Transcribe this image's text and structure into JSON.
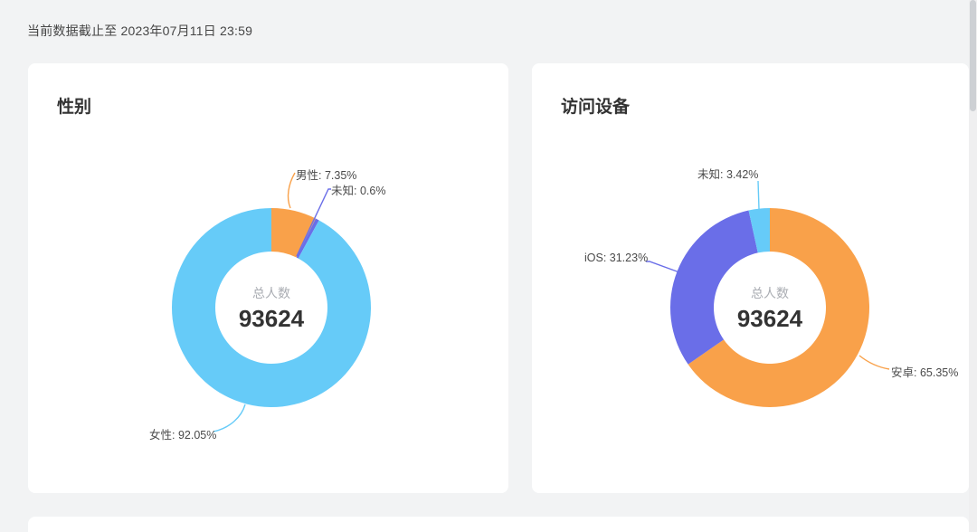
{
  "page": {
    "update_notice": "当前数据截止至 2023年07月11日 23:59",
    "background_color": "#f2f3f4",
    "card_color": "#ffffff",
    "scrollbar": {
      "track_color": "#efeff0",
      "thumb_color": "#cdd0d4"
    }
  },
  "chart_data": [
    {
      "type": "pie",
      "variant": "donut",
      "title": "性别",
      "labels": [
        "男性",
        "未知",
        "女性"
      ],
      "values": [
        7.35,
        0.6,
        92.05
      ],
      "unit": "%",
      "colors": [
        "#f9a14a",
        "#6a6ee8",
        "#66cbf8"
      ],
      "slice_labels": [
        "男性: 7.35%",
        "未知: 0.6%",
        "女性: 92.05%"
      ],
      "center": {
        "label": "总人数",
        "value": "93624"
      },
      "start_angle_deg": 90,
      "clockwise": true,
      "label_position": "outside",
      "legend": "none"
    },
    {
      "type": "pie",
      "variant": "donut",
      "title": "访问设备",
      "labels": [
        "安卓",
        "iOS",
        "未知"
      ],
      "values": [
        65.35,
        31.23,
        3.42
      ],
      "unit": "%",
      "colors": [
        "#f9a14a",
        "#6a6ee8",
        "#66cbf8"
      ],
      "slice_labels": [
        "安卓: 65.35%",
        "iOS: 31.23%",
        "未知: 3.42%"
      ],
      "center": {
        "label": "总人数",
        "value": "93624"
      },
      "start_angle_deg": 90,
      "clockwise": true,
      "label_position": "outside",
      "legend": "none"
    }
  ]
}
